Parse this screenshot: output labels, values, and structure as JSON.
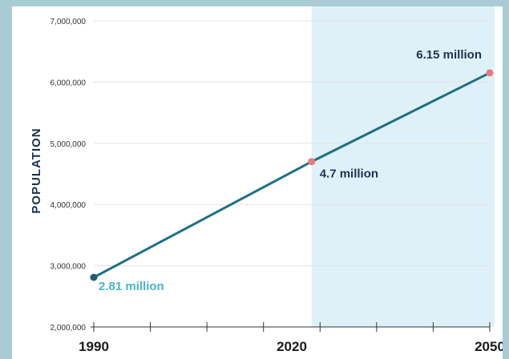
{
  "chart_data": {
    "type": "line",
    "ylabel": "POPULATION",
    "xlabel": "",
    "x_ticks": [
      "1990",
      "2020",
      "2050"
    ],
    "x_range": [
      1990,
      2050
    ],
    "ylim": [
      2000000,
      7000000
    ],
    "y_ticks": [
      2000000,
      3000000,
      4000000,
      5000000,
      6000000,
      7000000
    ],
    "y_tick_labels": [
      "2,000,000",
      "3,000,000",
      "4,000,000",
      "5,000,000",
      "6,000,000",
      "7,000,000"
    ],
    "grid": true,
    "series": [
      {
        "x": [
          1990,
          2023,
          2050
        ],
        "y": [
          2810000,
          4700000,
          6150000
        ]
      }
    ],
    "projection_region": {
      "from": 2023,
      "to": 2050
    },
    "annotations": [
      {
        "label": "2.81 million",
        "x": 1990,
        "y": 2810000,
        "color": "#4bb3c8"
      },
      {
        "label": "4.7 million",
        "x": 2023,
        "y": 4700000,
        "color": "#1b3350"
      },
      {
        "label": "6.15 million",
        "x": 2050,
        "y": 6150000,
        "color": "#1b3350"
      }
    ],
    "colors": {
      "line": "#1f6f86",
      "start_point": "#1f5f73",
      "projected_point": "#e37b80",
      "projection_shade": "#dff1f8",
      "gridline": "#e3e3e3"
    }
  }
}
